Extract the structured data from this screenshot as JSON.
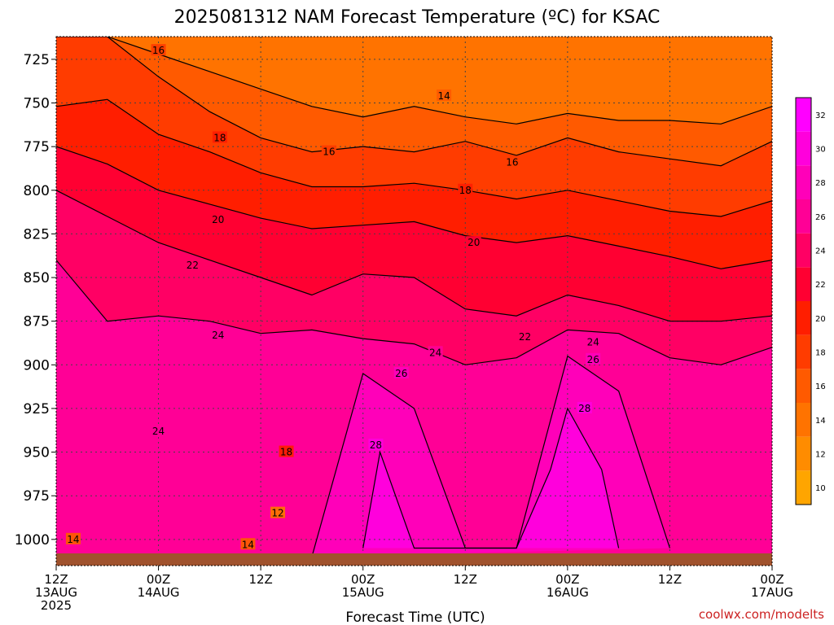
{
  "chart_data": {
    "type": "heatmap",
    "title": "2025081312 NAM Forecast Temperature (ºC) for KSAC",
    "xlabel": "Forecast Time (UTC)",
    "ylabel": "",
    "credit": "coolwx.com/modelts",
    "x_ticks": [
      {
        "hour": 0,
        "line1": "12Z",
        "line2": "13AUG",
        "line3": "2025"
      },
      {
        "hour": 12,
        "line1": "00Z",
        "line2": "14AUG",
        "line3": ""
      },
      {
        "hour": 24,
        "line1": "12Z",
        "line2": "",
        "line3": ""
      },
      {
        "hour": 36,
        "line1": "00Z",
        "line2": "15AUG",
        "line3": ""
      },
      {
        "hour": 48,
        "line1": "12Z",
        "line2": "",
        "line3": ""
      },
      {
        "hour": 60,
        "line1": "00Z",
        "line2": "16AUG",
        "line3": ""
      },
      {
        "hour": 72,
        "line1": "12Z",
        "line2": "",
        "line3": ""
      },
      {
        "hour": 84,
        "line1": "00Z",
        "line2": "17AUG",
        "line3": ""
      }
    ],
    "xlim": [
      0,
      84
    ],
    "y_ticks": [
      "725",
      "750",
      "775",
      "800",
      "825",
      "850",
      "875",
      "900",
      "925",
      "950",
      "975",
      "1000"
    ],
    "ylim": [
      1015,
      712
    ],
    "colorbar": {
      "labels": [
        "10",
        "12",
        "14",
        "16",
        "18",
        "20",
        "22",
        "24",
        "26",
        "28",
        "30",
        "32"
      ],
      "colors": [
        "#ffa500",
        "#ff8c00",
        "#ff7300",
        "#ff5a00",
        "#ff3c00",
        "#ff1e00",
        "#ff0032",
        "#ff0064",
        "#ff0096",
        "#ff00b9",
        "#ff00dc",
        "#ff00ff"
      ]
    },
    "isotherm_levels_hpa": {
      "14": [
        [
          0,
          700
        ],
        [
          6,
          712
        ],
        [
          12,
          722
        ],
        [
          18,
          732
        ],
        [
          24,
          742
        ],
        [
          30,
          752
        ],
        [
          36,
          758
        ],
        [
          42,
          752
        ],
        [
          48,
          758
        ],
        [
          54,
          762
        ],
        [
          60,
          756
        ],
        [
          66,
          760
        ],
        [
          72,
          760
        ],
        [
          78,
          762
        ],
        [
          84,
          752
        ]
      ],
      "16": [
        [
          0,
          712
        ],
        [
          6,
          712
        ],
        [
          12,
          735
        ],
        [
          18,
          755
        ],
        [
          24,
          770
        ],
        [
          30,
          778
        ],
        [
          36,
          775
        ],
        [
          42,
          778
        ],
        [
          48,
          772
        ],
        [
          54,
          780
        ],
        [
          60,
          770
        ],
        [
          66,
          778
        ],
        [
          72,
          782
        ],
        [
          78,
          786
        ],
        [
          84,
          772
        ]
      ],
      "18": [
        [
          0,
          752
        ],
        [
          6,
          748
        ],
        [
          12,
          768
        ],
        [
          18,
          778
        ],
        [
          24,
          790
        ],
        [
          30,
          798
        ],
        [
          36,
          798
        ],
        [
          42,
          796
        ],
        [
          48,
          800
        ],
        [
          54,
          805
        ],
        [
          60,
          800
        ],
        [
          66,
          806
        ],
        [
          72,
          812
        ],
        [
          78,
          815
        ],
        [
          84,
          806
        ]
      ],
      "20": [
        [
          0,
          775
        ],
        [
          6,
          785
        ],
        [
          12,
          800
        ],
        [
          18,
          808
        ],
        [
          24,
          816
        ],
        [
          30,
          822
        ],
        [
          36,
          820
        ],
        [
          42,
          818
        ],
        [
          48,
          826
        ],
        [
          54,
          830
        ],
        [
          60,
          826
        ],
        [
          66,
          832
        ],
        [
          72,
          838
        ],
        [
          78,
          845
        ],
        [
          84,
          840
        ]
      ],
      "22": [
        [
          0,
          800
        ],
        [
          6,
          815
        ],
        [
          12,
          830
        ],
        [
          18,
          840
        ],
        [
          24,
          850
        ],
        [
          30,
          860
        ],
        [
          36,
          848
        ],
        [
          42,
          850
        ],
        [
          48,
          868
        ],
        [
          54,
          872
        ],
        [
          60,
          860
        ],
        [
          66,
          866
        ],
        [
          72,
          875
        ],
        [
          78,
          875
        ],
        [
          84,
          872
        ]
      ],
      "24": [
        [
          0,
          840
        ],
        [
          6,
          875
        ],
        [
          12,
          872
        ],
        [
          18,
          875
        ],
        [
          24,
          882
        ],
        [
          30,
          880
        ],
        [
          36,
          885
        ],
        [
          42,
          888
        ],
        [
          48,
          900
        ],
        [
          54,
          896
        ],
        [
          60,
          880
        ],
        [
          66,
          882
        ],
        [
          72,
          896
        ],
        [
          78,
          900
        ],
        [
          84,
          890
        ]
      ],
      "26": [
        [
          30,
          1010
        ],
        [
          36,
          905
        ],
        [
          42,
          925
        ],
        [
          48,
          1005
        ],
        [
          54,
          1005
        ],
        [
          60,
          895
        ],
        [
          66,
          915
        ],
        [
          72,
          1005
        ]
      ],
      "28": [
        [
          36,
          1005
        ],
        [
          38,
          950
        ],
        [
          42,
          1005
        ],
        [
          54,
          1005
        ],
        [
          58,
          960
        ],
        [
          60,
          925
        ],
        [
          64,
          960
        ],
        [
          66,
          1005
        ]
      ]
    },
    "contour_labels": [
      {
        "text": "16",
        "hour": 12.0,
        "hpa": 720
      },
      {
        "text": "14",
        "hour": 45.5,
        "hpa": 746
      },
      {
        "text": "18",
        "hour": 19.2,
        "hpa": 770
      },
      {
        "text": "16",
        "hour": 32.0,
        "hpa": 778
      },
      {
        "text": "16",
        "hour": 53.5,
        "hpa": 784
      },
      {
        "text": "18",
        "hour": 48.0,
        "hpa": 800
      },
      {
        "text": "20",
        "hour": 19.0,
        "hpa": 817
      },
      {
        "text": "20",
        "hour": 49.0,
        "hpa": 830
      },
      {
        "text": "22",
        "hour": 16.0,
        "hpa": 843
      },
      {
        "text": "22",
        "hour": 55.0,
        "hpa": 884
      },
      {
        "text": "24",
        "hour": 19.0,
        "hpa": 883
      },
      {
        "text": "24",
        "hour": 44.5,
        "hpa": 893
      },
      {
        "text": "24",
        "hour": 63.0,
        "hpa": 887
      },
      {
        "text": "26",
        "hour": 40.5,
        "hpa": 905
      },
      {
        "text": "26",
        "hour": 63.0,
        "hpa": 897
      },
      {
        "text": "28",
        "hour": 62.0,
        "hpa": 925
      },
      {
        "text": "28",
        "hour": 37.5,
        "hpa": 946
      },
      {
        "text": "24",
        "hour": 12.0,
        "hpa": 938
      },
      {
        "text": "18",
        "hour": 27.0,
        "hpa": 950
      },
      {
        "text": "12",
        "hour": 26.0,
        "hpa": 985
      },
      {
        "text": "14",
        "hour": 22.5,
        "hpa": 1003
      },
      {
        "text": "14",
        "hour": 2.0,
        "hpa": 1000
      }
    ]
  }
}
